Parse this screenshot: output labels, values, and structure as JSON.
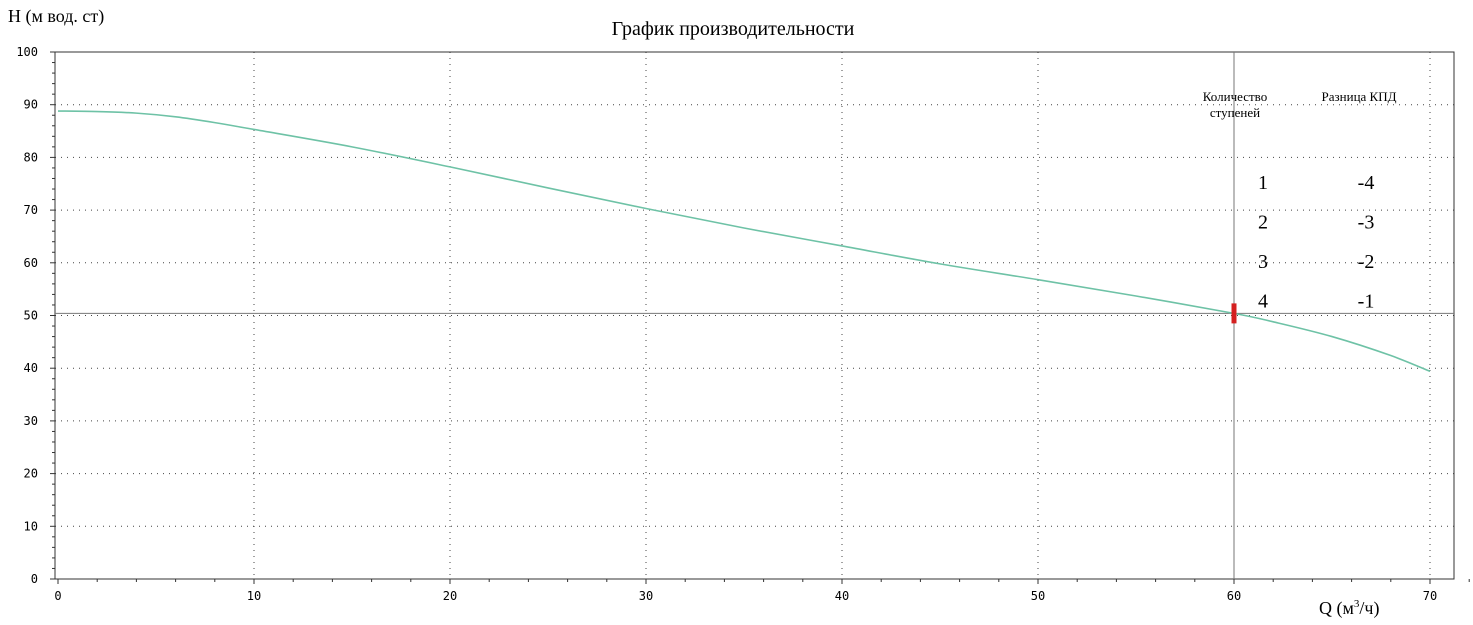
{
  "chart_data": {
    "type": "line",
    "title": "График производительности",
    "ylabel": "H (м вод. ст)",
    "xlabel_main": "Q (м",
    "xlabel_sup": "3",
    "xlabel_tail": "/ч)",
    "xlim": [
      0,
      72
    ],
    "ylim": [
      0,
      100
    ],
    "x_ticks": [
      "0",
      "10",
      "20",
      "30",
      "40",
      "50",
      "60",
      "70"
    ],
    "y_ticks": [
      "0",
      "10",
      "20",
      "30",
      "40",
      "50",
      "60",
      "70",
      "80",
      "90",
      "100"
    ],
    "grid": true,
    "series": [
      {
        "color": "#6ec2a6",
        "x": [
          0,
          2,
          4,
          6,
          8,
          10,
          15,
          20,
          25,
          30,
          35,
          40,
          45,
          50,
          55,
          60,
          62,
          65,
          68,
          70
        ],
        "y": [
          88.8,
          88.7,
          88.4,
          87.7,
          86.6,
          85.3,
          82.0,
          78.2,
          74.2,
          70.3,
          66.6,
          63.2,
          59.8,
          56.8,
          53.7,
          50.4,
          48.8,
          46.0,
          42.4,
          39.4
        ]
      }
    ],
    "operating_point": {
      "x": 60,
      "y": 50.4,
      "color": "#d42020"
    },
    "table": {
      "headers": [
        [
          "Количество",
          "ступеней"
        ],
        [
          "Разница КПД"
        ]
      ],
      "rows": [
        [
          "1",
          "-4"
        ],
        [
          "2",
          "-3"
        ],
        [
          "3",
          "-2"
        ],
        [
          "4",
          "-1"
        ]
      ]
    }
  }
}
